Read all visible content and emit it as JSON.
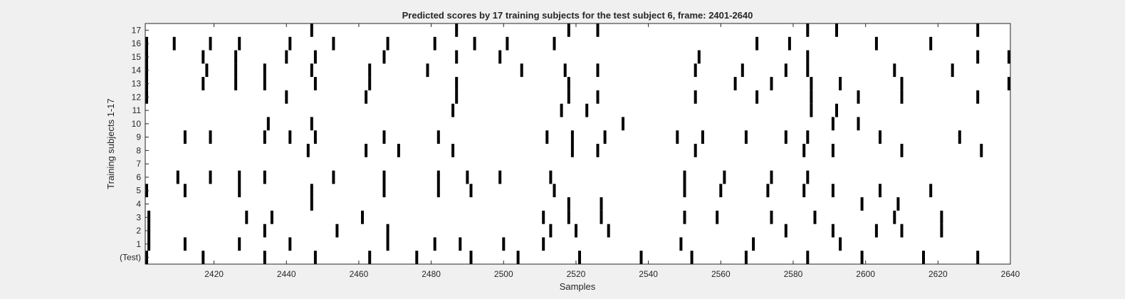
{
  "chart_data": {
    "type": "heatmap",
    "title": "Predicted scores by 17 training subjects for the test subject 6, frame: 2401-2640",
    "xlabel": "Samples",
    "ylabel": "Training subjects 1-17",
    "xlim": [
      2401,
      2640
    ],
    "xticks": [
      2420,
      2440,
      2460,
      2480,
      2500,
      2520,
      2540,
      2560,
      2580,
      2600,
      2620,
      2640
    ],
    "yticks": [
      "(Test)",
      "1",
      "2",
      "3",
      "4",
      "5",
      "6",
      "7",
      "8",
      "9",
      "10",
      "11",
      "12",
      "13",
      "14",
      "15",
      "16",
      "17"
    ],
    "grid": false,
    "colors": {
      "background": "#ffffff",
      "mark": "#000000",
      "figure": "#f0f0f0"
    },
    "series": [
      {
        "name": "(Test)",
        "x": [
          2401,
          2417,
          2434,
          2448,
          2463,
          2476,
          2491,
          2504,
          2521,
          2538,
          2552,
          2567,
          2584,
          2599,
          2616,
          2631
        ]
      },
      {
        "name": "1",
        "x": [
          2402,
          2412,
          2427,
          2441,
          2468,
          2481,
          2488,
          2500,
          2511,
          2549,
          2569,
          2593
        ]
      },
      {
        "name": "2",
        "x": [
          2402,
          2434,
          2454,
          2468,
          2513,
          2520,
          2529,
          2578,
          2591,
          2603,
          2610,
          2621
        ]
      },
      {
        "name": "3",
        "x": [
          2402,
          2429,
          2436,
          2461,
          2511,
          2518,
          2527,
          2550,
          2559,
          2574,
          2586,
          2608,
          2621
        ]
      },
      {
        "name": "4",
        "x": [
          2447,
          2518,
          2527,
          2599,
          2609
        ]
      },
      {
        "name": "5",
        "x": [
          2401,
          2412,
          2427,
          2447,
          2467,
          2482,
          2491,
          2514,
          2550,
          2560,
          2573,
          2583,
          2591,
          2604,
          2618
        ]
      },
      {
        "name": "6",
        "x": [
          2410,
          2419,
          2427,
          2434,
          2453,
          2467,
          2482,
          2490,
          2499,
          2513,
          2550,
          2561,
          2574,
          2584
        ]
      },
      {
        "name": "7",
        "x": []
      },
      {
        "name": "8",
        "x": [
          2446,
          2462,
          2471,
          2486,
          2519,
          2526,
          2553,
          2583,
          2591,
          2610,
          2632
        ]
      },
      {
        "name": "9",
        "x": [
          2412,
          2419,
          2434,
          2441,
          2448,
          2467,
          2482,
          2512,
          2519,
          2528,
          2548,
          2555,
          2567,
          2578,
          2584,
          2604,
          2626
        ]
      },
      {
        "name": "10",
        "x": [
          2435,
          2447,
          2533,
          2591,
          2598
        ]
      },
      {
        "name": "11",
        "x": [
          2486,
          2516,
          2523,
          2585,
          2592
        ]
      },
      {
        "name": "12",
        "x": [
          2401,
          2440,
          2462,
          2487,
          2518,
          2526,
          2553,
          2570,
          2585,
          2598,
          2610,
          2631
        ]
      },
      {
        "name": "13",
        "x": [
          2401,
          2417,
          2426,
          2434,
          2448,
          2463,
          2487,
          2518,
          2564,
          2574,
          2585,
          2593,
          2610,
          2640
        ]
      },
      {
        "name": "14",
        "x": [
          2401,
          2418,
          2426,
          2434,
          2447,
          2463,
          2479,
          2505,
          2517,
          2526,
          2553,
          2566,
          2578,
          2584,
          2608,
          2624
        ]
      },
      {
        "name": "15",
        "x": [
          2401,
          2417,
          2426,
          2440,
          2448,
          2467,
          2487,
          2499,
          2554,
          2584,
          2631,
          2640
        ]
      },
      {
        "name": "16",
        "x": [
          2401,
          2409,
          2419,
          2427,
          2441,
          2453,
          2468,
          2481,
          2492,
          2501,
          2514,
          2570,
          2579,
          2603,
          2618
        ]
      },
      {
        "name": "17",
        "x": [
          2447,
          2487,
          2518,
          2526,
          2584,
          2592,
          2631
        ]
      }
    ]
  }
}
